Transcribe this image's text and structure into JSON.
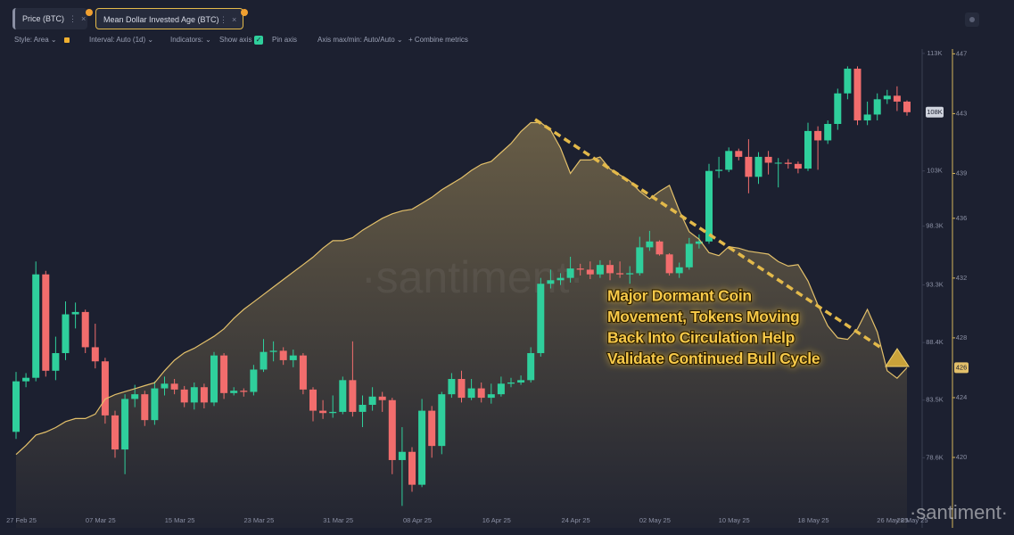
{
  "toolbar": {
    "tabs": [
      "Price (BTC)",
      "Mean Dollar Invested Age (BTC)"
    ],
    "style": "Style: Area",
    "interval": "Interval: Auto (1d)",
    "indicators": "Indicators:",
    "show_axis": "Show axis",
    "pin_axis": "Pin axis",
    "axis_minmax": "Axis max/min: Auto/Auto",
    "combine": "Combine metrics"
  },
  "watermark": "·santiment·",
  "chart_data": {
    "type": "candlestick",
    "categories": [
      "27 Feb 25",
      null,
      null,
      null,
      null,
      null,
      null,
      null,
      "07 Mar 25",
      null,
      null,
      null,
      null,
      null,
      null,
      null,
      "15 Mar 25",
      null,
      null,
      null,
      null,
      null,
      null,
      null,
      "23 Mar 25",
      null,
      null,
      null,
      null,
      null,
      null,
      null,
      "31 Mar 25",
      null,
      null,
      null,
      null,
      null,
      null,
      null,
      "08 Apr 25",
      null,
      null,
      null,
      null,
      null,
      null,
      null,
      "16 Apr 25",
      null,
      null,
      null,
      null,
      null,
      null,
      null,
      "24 Apr 25",
      null,
      null,
      null,
      null,
      null,
      null,
      null,
      "02 May 25",
      null,
      null,
      null,
      null,
      null,
      null,
      null,
      "10 May 25",
      null,
      null,
      null,
      null,
      null,
      null,
      null,
      "18 May 25",
      null,
      null,
      null,
      null,
      null,
      null,
      null,
      "26 May 25",
      null,
      "28 May 25"
    ],
    "series": [
      {
        "name": "Price (BTC)",
        "color_up": "#2fcf9c",
        "color_down": "#f26d6d",
        "last_value_label": "108K",
        "open": [
          80800,
          85100,
          85400,
          94200,
          86000,
          87500,
          90800,
          91000,
          88000,
          86800,
          82200,
          79300,
          83600,
          84000,
          81800,
          84500,
          84900,
          84400,
          83300,
          84600,
          83300,
          87300,
          84100,
          84300,
          84200,
          86100,
          87600,
          87700,
          86900,
          87300,
          84400,
          82600,
          82400,
          82500,
          85200,
          82500,
          83100,
          83800,
          83500,
          78400,
          79100,
          76300,
          82600,
          79600,
          84000,
          85300,
          83700,
          84500,
          83700,
          84000,
          84900,
          85000,
          85200,
          87500,
          93400,
          93700,
          93900,
          94700,
          94600,
          94200,
          95000,
          94300,
          94200,
          94300,
          96500,
          97000,
          95900,
          94300,
          94800,
          96800,
          97000,
          103000,
          103100,
          104700,
          104200,
          102500,
          104200,
          103700,
          103700,
          103600,
          103200,
          106400,
          105600,
          107000,
          109600,
          111700,
          107300,
          107800,
          109100,
          109400,
          108900
        ],
        "high": [
          85900,
          85800,
          95300,
          94500,
          88900,
          91900,
          91800,
          91200,
          90000,
          87100,
          82600,
          84000,
          84800,
          84300,
          85100,
          85500,
          85300,
          84700,
          85000,
          84900,
          87600,
          87500,
          84600,
          84500,
          86500,
          88700,
          88500,
          88000,
          87800,
          87500,
          84600,
          83500,
          83900,
          85500,
          88500,
          83900,
          84600,
          84200,
          83700,
          81200,
          79500,
          83600,
          83000,
          84200,
          85800,
          86000,
          85300,
          85000,
          84900,
          85500,
          85400,
          85600,
          88000,
          93900,
          94600,
          94300,
          95700,
          95100,
          95300,
          95400,
          95400,
          95300,
          94900,
          97400,
          97900,
          97100,
          96000,
          95200,
          97300,
          97600,
          103600,
          104200,
          105000,
          104900,
          105700,
          104600,
          104700,
          104100,
          104000,
          103800,
          107100,
          106800,
          107300,
          110000,
          111900,
          111900,
          108900,
          109600,
          109900,
          110200,
          109000
        ],
        "low": [
          80200,
          84600,
          85100,
          85500,
          85200,
          86900,
          89600,
          87500,
          86200,
          81500,
          78600,
          77200,
          82900,
          81300,
          81400,
          83900,
          84000,
          82900,
          82700,
          82800,
          83000,
          83600,
          83900,
          83800,
          83900,
          85900,
          86800,
          86500,
          86300,
          84000,
          81700,
          81900,
          82000,
          82300,
          82100,
          81200,
          82600,
          82500,
          77200,
          74500,
          75700,
          76100,
          78600,
          78900,
          83700,
          83300,
          83500,
          83300,
          83200,
          83800,
          84600,
          84800,
          85000,
          87200,
          93000,
          93300,
          93500,
          94100,
          93800,
          93900,
          93700,
          93900,
          93400,
          94100,
          96200,
          95800,
          94100,
          93900,
          94600,
          96400,
          96800,
          102400,
          102900,
          103900,
          101100,
          101900,
          102700,
          101600,
          103200,
          102800,
          103000,
          103100,
          105300,
          106500,
          109100,
          106900,
          106900,
          107300,
          108700,
          108100,
          107700
        ],
        "close": [
          85100,
          85400,
          94200,
          86000,
          87500,
          90800,
          91000,
          88000,
          86800,
          82200,
          79300,
          83600,
          84000,
          81800,
          84500,
          84900,
          84400,
          83300,
          84600,
          83300,
          87300,
          84100,
          84300,
          84200,
          86100,
          87600,
          87700,
          86900,
          87300,
          84400,
          82600,
          82400,
          82500,
          85200,
          82500,
          83100,
          83800,
          83500,
          78400,
          79100,
          76300,
          82600,
          79600,
          84000,
          85300,
          83700,
          84500,
          83700,
          84000,
          84900,
          85000,
          85200,
          87500,
          93400,
          93700,
          93900,
          94700,
          94600,
          94200,
          95000,
          94300,
          94200,
          94300,
          96500,
          97000,
          95900,
          94300,
          94800,
          96800,
          97000,
          103000,
          103100,
          104700,
          104200,
          102500,
          104200,
          103700,
          103700,
          103600,
          103200,
          106400,
          105600,
          107000,
          109600,
          111700,
          107300,
          107800,
          109100,
          109400,
          108900,
          108000
        ]
      },
      {
        "name": "Mean Dollar Invested Age (BTC)",
        "type": "area",
        "axis": "y2",
        "color": "#e3c06a",
        "last_value_label": "426",
        "values": [
          420.2,
          420.8,
          421.5,
          421.7,
          422.0,
          422.4,
          422.6,
          422.6,
          422.9,
          423.9,
          424.2,
          424.4,
          424.6,
          424.8,
          425.0,
          425.8,
          426.5,
          427.0,
          427.3,
          427.7,
          428.1,
          428.6,
          429.3,
          429.9,
          430.4,
          430.9,
          431.4,
          431.9,
          432.4,
          432.9,
          433.4,
          434.0,
          434.5,
          434.5,
          434.7,
          435.2,
          435.6,
          436.0,
          436.3,
          436.5,
          436.6,
          437.0,
          437.4,
          437.9,
          438.3,
          438.7,
          439.2,
          439.6,
          439.8,
          440.4,
          441.0,
          441.8,
          442.4,
          442.4,
          441.9,
          440.7,
          439.0,
          439.9,
          439.9,
          440.1,
          439.3,
          438.9,
          438.5,
          437.8,
          437.3,
          437.8,
          438.2,
          436.5,
          435.1,
          434.6,
          433.7,
          433.5,
          434.1,
          434.0,
          433.8,
          433.7,
          433.6,
          433.1,
          432.8,
          432.9,
          431.8,
          430.2,
          428.8,
          428.0,
          427.9,
          428.6,
          429.9,
          428.4,
          425.8,
          425.3,
          426.0
        ]
      }
    ],
    "ylim": [
      74300,
      113600
    ],
    "yticks": [
      {
        "value": 113000,
        "label": "113K"
      },
      {
        "value": 103000,
        "label": "103K"
      },
      {
        "value": 98300,
        "label": "98.3K"
      },
      {
        "value": 93300,
        "label": "93.3K"
      },
      {
        "value": 88400,
        "label": "88.4K"
      },
      {
        "value": 83500,
        "label": "83.5K"
      },
      {
        "value": 78600,
        "label": "78.6K"
      }
    ],
    "y2lim": [
      416.6,
      447.5
    ],
    "y2ticks": [
      447,
      443,
      439,
      436,
      432,
      428,
      424,
      420
    ],
    "annotation_lines": [
      "Major Dormant Coin",
      "Movement, Tokens Moving",
      "Back Into Circulation Help",
      "Validate Continued Bull Cycle"
    ]
  }
}
